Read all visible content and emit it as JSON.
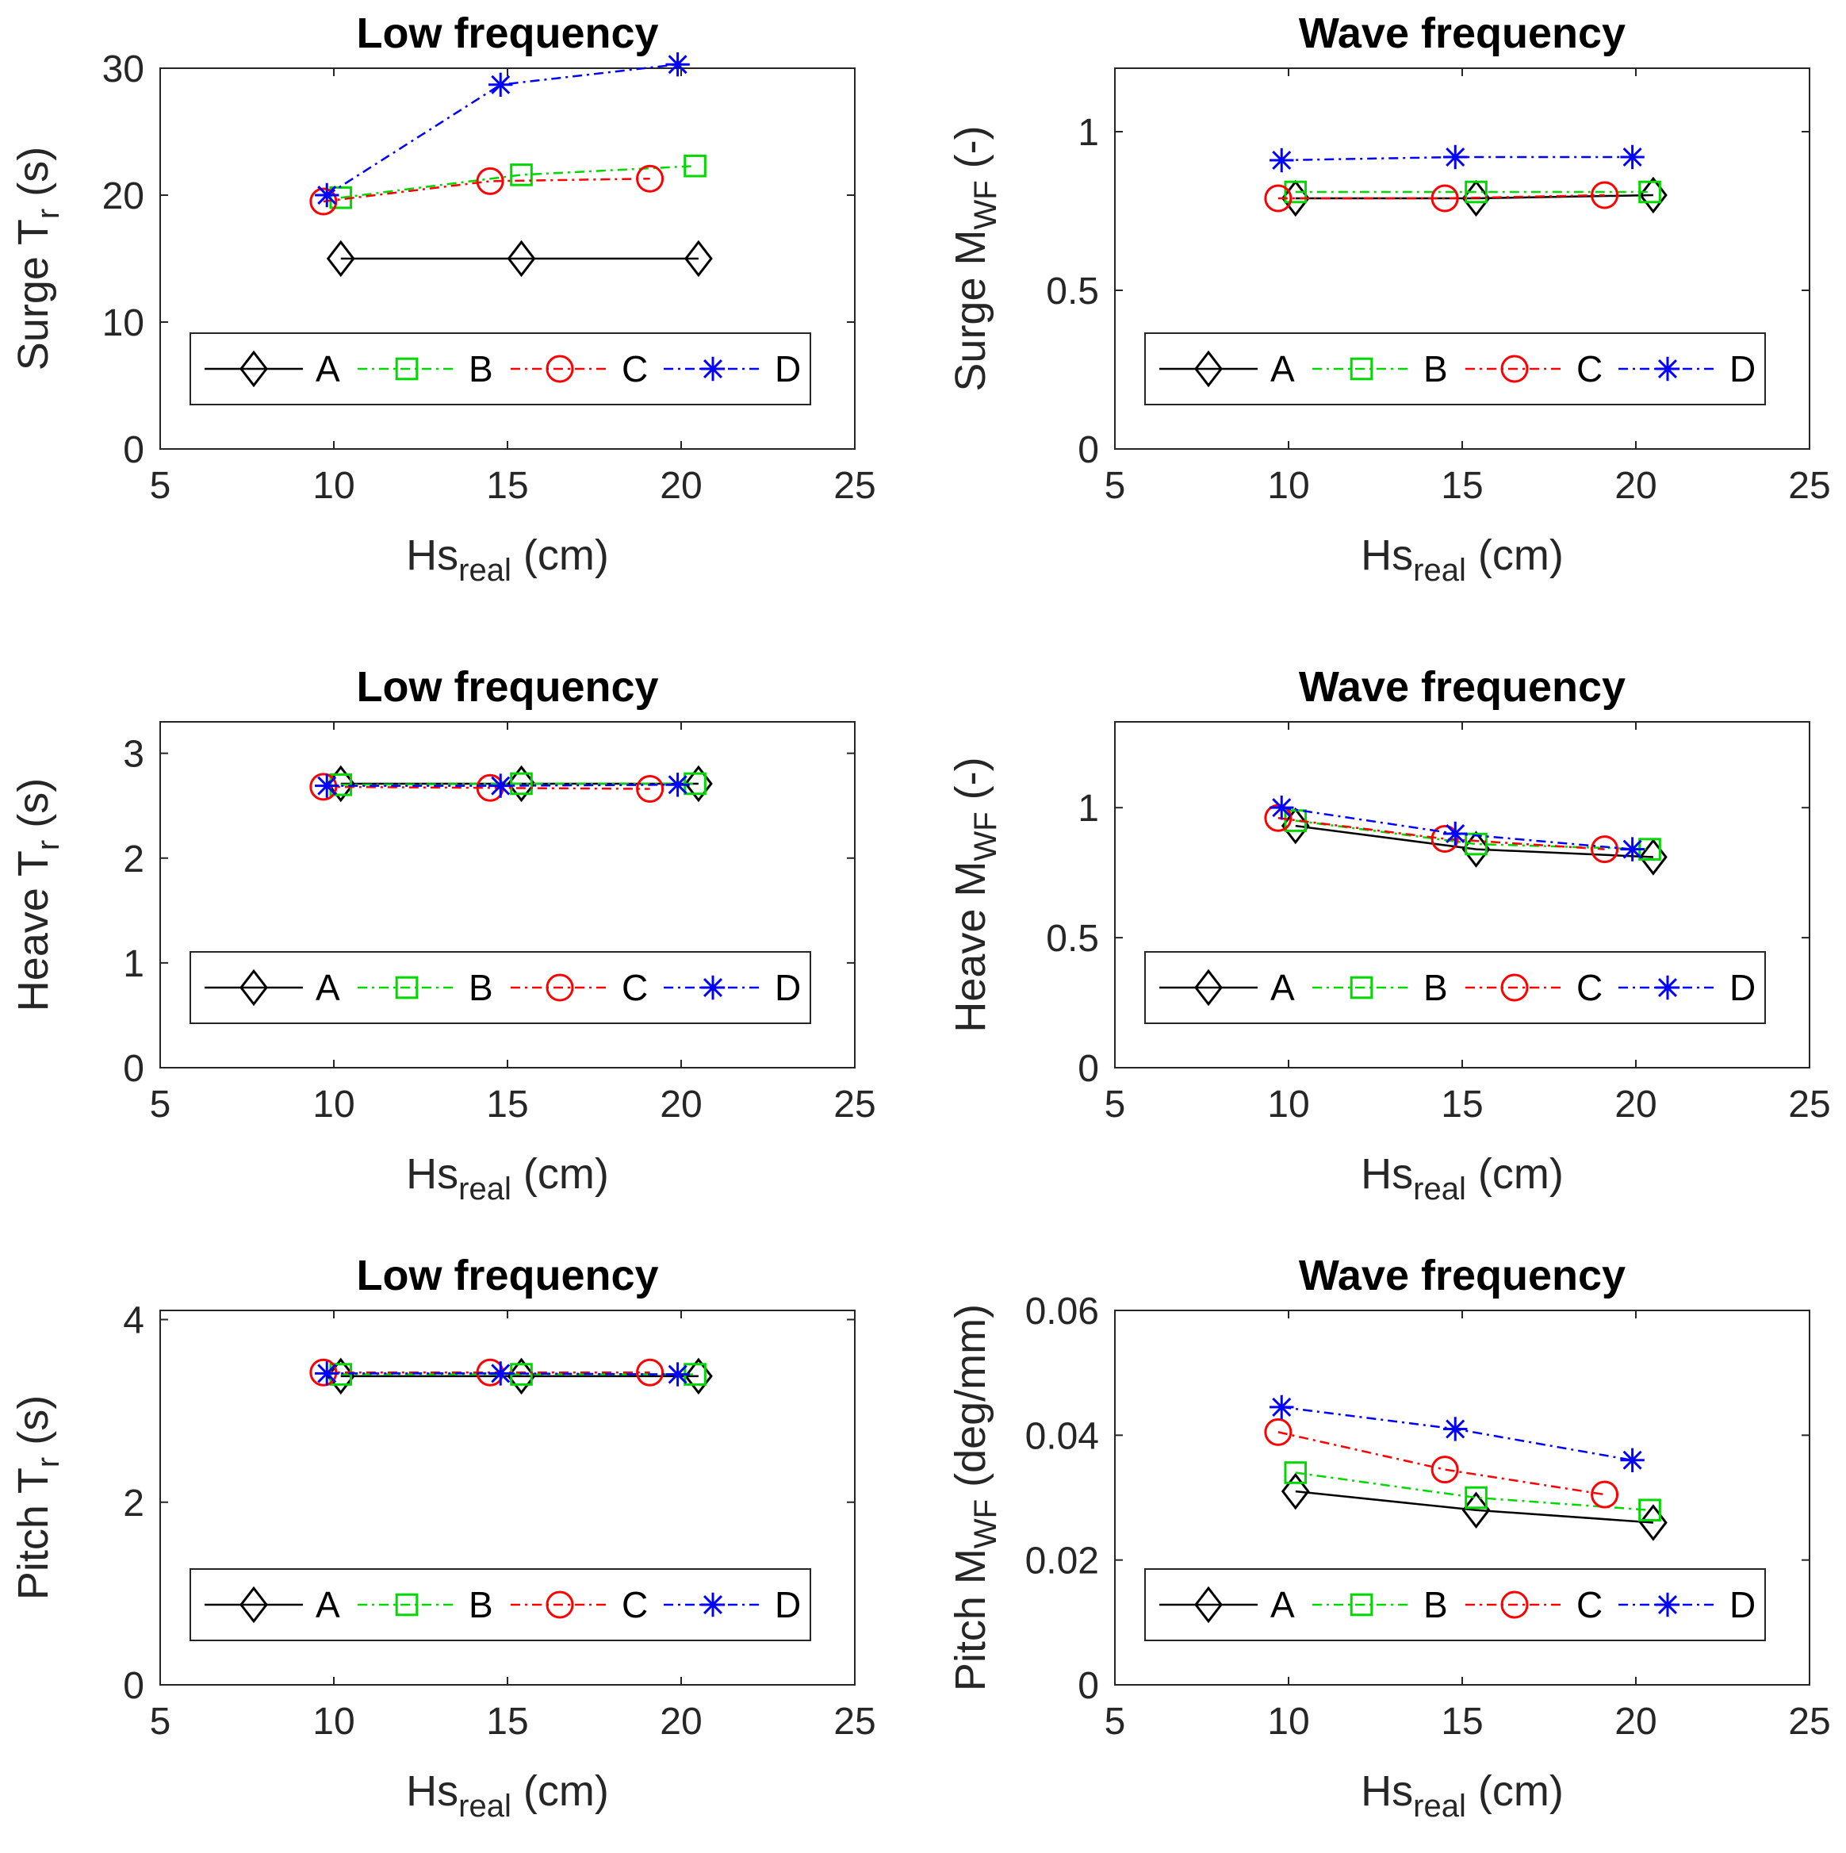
{
  "chart_data": [
    {
      "type": "line",
      "title": "Low frequency",
      "ylabel": {
        "prefix": "Surge T",
        "sub": "r",
        "suffix": " (s)"
      },
      "xlabel": {
        "prefix": "Hs",
        "sub": "real",
        "suffix": " (cm)"
      },
      "xlim": [
        5,
        25
      ],
      "ylim": [
        0,
        30
      ],
      "xticks": [
        "5",
        "10",
        "15",
        "20",
        "25"
      ],
      "yticks": [
        "0",
        "10",
        "20",
        "30"
      ],
      "legend": "bottom",
      "series": [
        {
          "name": "A",
          "x": [
            10.2,
            15.4,
            20.5
          ],
          "y": [
            15,
            15,
            15
          ]
        },
        {
          "name": "B",
          "x": [
            10.2,
            15.4,
            20.4
          ],
          "y": [
            19.8,
            21.6,
            22.3
          ]
        },
        {
          "name": "C",
          "x": [
            9.7,
            14.5,
            19.1
          ],
          "y": [
            19.5,
            21.1,
            21.3
          ]
        },
        {
          "name": "D",
          "x": [
            9.8,
            14.8,
            19.9
          ],
          "y": [
            20,
            28.7,
            30.3
          ]
        }
      ]
    },
    {
      "type": "line",
      "title": "Wave frequency",
      "ylabel": {
        "prefix": "Surge M",
        "sub": "WF",
        "suffix": " (-)"
      },
      "xlabel": {
        "prefix": "Hs",
        "sub": "real",
        "suffix": " (cm)"
      },
      "xlim": [
        5,
        25
      ],
      "ylim": [
        0,
        1.2
      ],
      "xticks": [
        "5",
        "10",
        "15",
        "20",
        "25"
      ],
      "yticks": [
        "0",
        "0.5",
        "1"
      ],
      "legend": "bottom",
      "series": [
        {
          "name": "A",
          "x": [
            10.2,
            15.4,
            20.5
          ],
          "y": [
            0.79,
            0.79,
            0.8
          ]
        },
        {
          "name": "B",
          "x": [
            10.2,
            15.4,
            20.4
          ],
          "y": [
            0.81,
            0.81,
            0.81
          ]
        },
        {
          "name": "C",
          "x": [
            9.7,
            14.5,
            19.1
          ],
          "y": [
            0.79,
            0.79,
            0.8
          ]
        },
        {
          "name": "D",
          "x": [
            9.8,
            14.8,
            19.9
          ],
          "y": [
            0.91,
            0.92,
            0.92
          ]
        }
      ]
    },
    {
      "type": "line",
      "title": "Low frequency",
      "ylabel": {
        "prefix": "Heave T",
        "sub": "r",
        "suffix": " (s)"
      },
      "xlabel": {
        "prefix": "Hs",
        "sub": "real",
        "suffix": " (cm)"
      },
      "xlim": [
        5,
        25
      ],
      "ylim": [
        0,
        3.3
      ],
      "xticks": [
        "5",
        "10",
        "15",
        "20",
        "25"
      ],
      "yticks": [
        "0",
        "1",
        "2",
        "3"
      ],
      "legend": "bottom",
      "series": [
        {
          "name": "A",
          "x": [
            10.2,
            15.4,
            20.5
          ],
          "y": [
            2.71,
            2.71,
            2.71
          ]
        },
        {
          "name": "B",
          "x": [
            10.2,
            15.4,
            20.4
          ],
          "y": [
            2.7,
            2.71,
            2.71
          ]
        },
        {
          "name": "C",
          "x": [
            9.7,
            14.5,
            19.1
          ],
          "y": [
            2.68,
            2.67,
            2.66
          ]
        },
        {
          "name": "D",
          "x": [
            9.8,
            14.8,
            19.9
          ],
          "y": [
            2.69,
            2.69,
            2.7
          ]
        }
      ]
    },
    {
      "type": "line",
      "title": "Wave frequency",
      "ylabel": {
        "prefix": "Heave M",
        "sub": "WF",
        "suffix": " (-)"
      },
      "xlabel": {
        "prefix": "Hs",
        "sub": "real",
        "suffix": " (cm)"
      },
      "xlim": [
        5,
        25
      ],
      "ylim": [
        0,
        1.33
      ],
      "xticks": [
        "5",
        "10",
        "15",
        "20",
        "25"
      ],
      "yticks": [
        "0",
        "0.5",
        "1"
      ],
      "legend": "bottom",
      "series": [
        {
          "name": "A",
          "x": [
            10.2,
            15.4,
            20.5
          ],
          "y": [
            0.93,
            0.84,
            0.81
          ]
        },
        {
          "name": "B",
          "x": [
            10.2,
            15.4,
            20.4
          ],
          "y": [
            0.95,
            0.86,
            0.84
          ]
        },
        {
          "name": "C",
          "x": [
            9.7,
            14.5,
            19.1
          ],
          "y": [
            0.96,
            0.88,
            0.84
          ]
        },
        {
          "name": "D",
          "x": [
            9.8,
            14.8,
            19.9
          ],
          "y": [
            1.0,
            0.9,
            0.84
          ]
        }
      ]
    },
    {
      "type": "line",
      "title": "Low frequency",
      "ylabel": {
        "prefix": "Pitch T",
        "sub": "r",
        "suffix": " (s)"
      },
      "xlabel": {
        "prefix": "Hs",
        "sub": "real",
        "suffix": " (cm)"
      },
      "xlim": [
        5,
        25
      ],
      "ylim": [
        0,
        4.1
      ],
      "xticks": [
        "5",
        "10",
        "15",
        "20",
        "25"
      ],
      "yticks": [
        "0",
        "2",
        "4"
      ],
      "legend": "bottom",
      "series": [
        {
          "name": "A",
          "x": [
            10.2,
            15.4,
            20.5
          ],
          "y": [
            3.38,
            3.38,
            3.38
          ]
        },
        {
          "name": "B",
          "x": [
            10.2,
            15.4,
            20.4
          ],
          "y": [
            3.4,
            3.4,
            3.4
          ]
        },
        {
          "name": "C",
          "x": [
            9.7,
            14.5,
            19.1
          ],
          "y": [
            3.42,
            3.42,
            3.42
          ]
        },
        {
          "name": "D",
          "x": [
            9.8,
            14.8,
            19.9
          ],
          "y": [
            3.41,
            3.41,
            3.4
          ]
        }
      ]
    },
    {
      "type": "line",
      "title": "Wave frequency",
      "ylabel": {
        "prefix": "Pitch M",
        "sub": "WF",
        "suffix": " (deg/mm)"
      },
      "xlabel": {
        "prefix": "Hs",
        "sub": "real",
        "suffix": " (cm)"
      },
      "xlim": [
        5,
        25
      ],
      "ylim": [
        0,
        0.06
      ],
      "xticks": [
        "5",
        "10",
        "15",
        "20",
        "25"
      ],
      "yticks": [
        "0",
        "0.02",
        "0.04",
        "0.06"
      ],
      "legend": "bottom",
      "series": [
        {
          "name": "A",
          "x": [
            10.2,
            15.4,
            20.5
          ],
          "y": [
            0.031,
            0.028,
            0.026
          ]
        },
        {
          "name": "B",
          "x": [
            10.2,
            15.4,
            20.4
          ],
          "y": [
            0.034,
            0.03,
            0.028
          ]
        },
        {
          "name": "C",
          "x": [
            9.7,
            14.5,
            19.1
          ],
          "y": [
            0.0405,
            0.0345,
            0.0305
          ]
        },
        {
          "name": "D",
          "x": [
            9.8,
            14.8,
            19.9
          ],
          "y": [
            0.0445,
            0.041,
            0.036
          ]
        }
      ]
    }
  ],
  "styles": {
    "A": {
      "color": "#000000",
      "marker": "diamond",
      "dash": "solid"
    },
    "B": {
      "color": "#00d800",
      "marker": "square",
      "dash": "dashdot"
    },
    "C": {
      "color": "#ff0000",
      "marker": "circle",
      "dash": "dashdot"
    },
    "D": {
      "color": "#0000ff",
      "marker": "asterisk",
      "dash": "dashdot"
    }
  }
}
